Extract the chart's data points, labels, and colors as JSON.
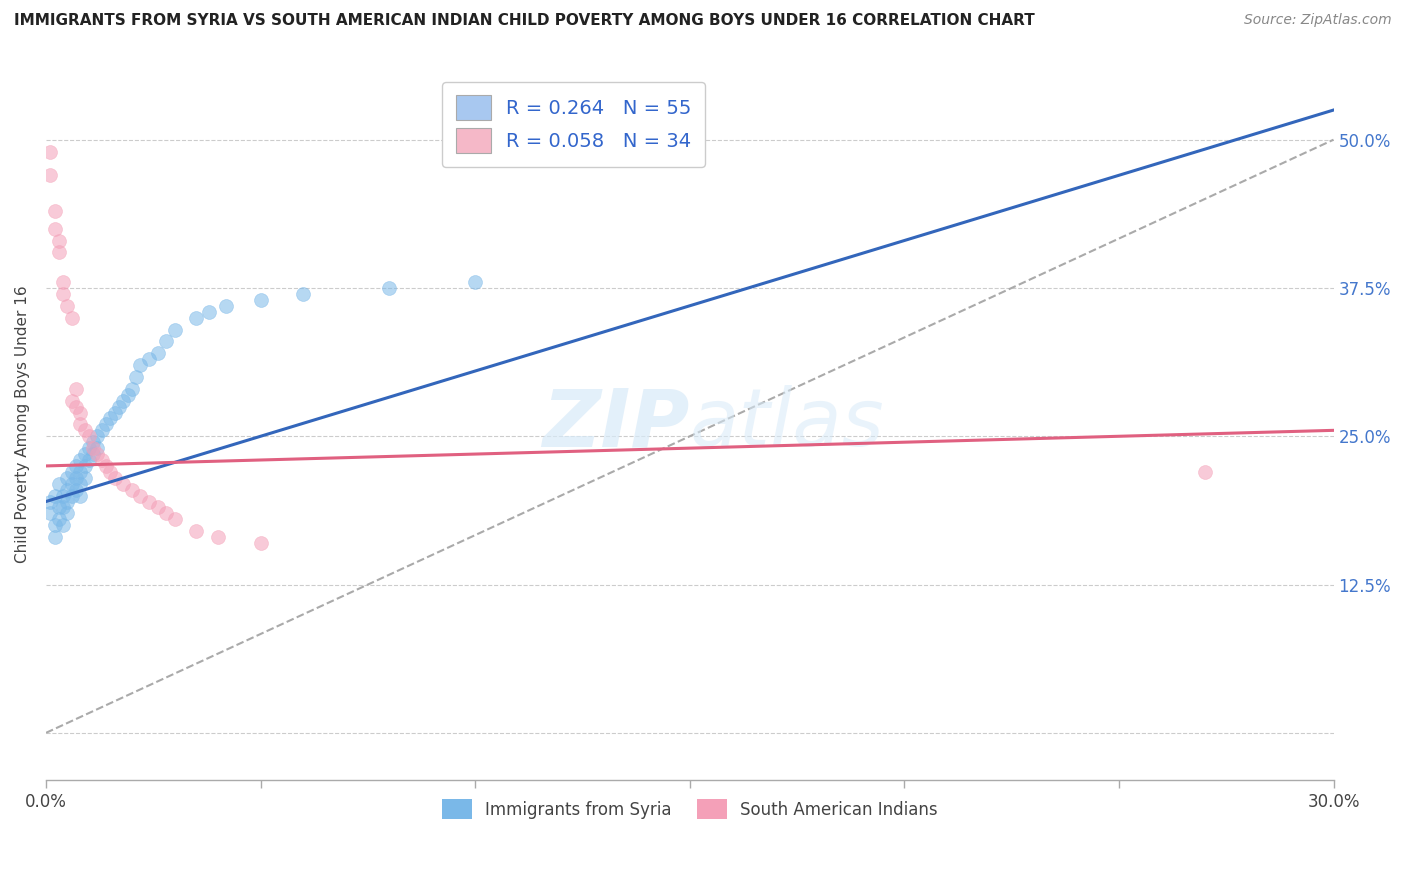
{
  "title": "IMMIGRANTS FROM SYRIA VS SOUTH AMERICAN INDIAN CHILD POVERTY AMONG BOYS UNDER 16 CORRELATION CHART",
  "source": "Source: ZipAtlas.com",
  "ylabel": "Child Poverty Among Boys Under 16",
  "xlim": [
    0.0,
    0.3
  ],
  "ylim": [
    -0.04,
    0.56
  ],
  "xticks": [
    0.0,
    0.05,
    0.1,
    0.15,
    0.2,
    0.25,
    0.3
  ],
  "xticklabels": [
    "0.0%",
    "",
    "",
    "",
    "",
    "",
    "30.0%"
  ],
  "yticks": [
    0.0,
    0.125,
    0.25,
    0.375,
    0.5
  ],
  "yticklabels": [
    "",
    "12.5%",
    "25.0%",
    "37.5%",
    "50.0%"
  ],
  "watermark": "ZIPatlas",
  "legend_R_N_blue": "R = 0.264   N = 55",
  "legend_R_N_pink": "R = 0.058   N = 34",
  "legend_patch_blue": "#a8c8f0",
  "legend_patch_pink": "#f5b8c8",
  "blue_color": "#7ab8e8",
  "pink_color": "#f4a0b8",
  "trend_blue": "#3366bb",
  "trend_pink": "#e06080",
  "trend_dashed_color": "#aaaaaa",
  "syria_x": [
    0.001,
    0.001,
    0.002,
    0.002,
    0.002,
    0.003,
    0.003,
    0.003,
    0.004,
    0.004,
    0.004,
    0.005,
    0.005,
    0.005,
    0.005,
    0.006,
    0.006,
    0.006,
    0.007,
    0.007,
    0.007,
    0.008,
    0.008,
    0.008,
    0.008,
    0.009,
    0.009,
    0.009,
    0.01,
    0.01,
    0.011,
    0.011,
    0.012,
    0.012,
    0.013,
    0.014,
    0.015,
    0.016,
    0.017,
    0.018,
    0.019,
    0.02,
    0.021,
    0.022,
    0.024,
    0.026,
    0.028,
    0.03,
    0.035,
    0.038,
    0.042,
    0.05,
    0.06,
    0.08,
    0.1
  ],
  "syria_y": [
    0.195,
    0.185,
    0.2,
    0.175,
    0.165,
    0.21,
    0.19,
    0.18,
    0.2,
    0.19,
    0.175,
    0.215,
    0.205,
    0.195,
    0.185,
    0.22,
    0.21,
    0.2,
    0.225,
    0.215,
    0.205,
    0.23,
    0.22,
    0.21,
    0.2,
    0.235,
    0.225,
    0.215,
    0.24,
    0.23,
    0.245,
    0.235,
    0.25,
    0.24,
    0.255,
    0.26,
    0.265,
    0.27,
    0.275,
    0.28,
    0.285,
    0.29,
    0.3,
    0.31,
    0.315,
    0.32,
    0.33,
    0.34,
    0.35,
    0.355,
    0.36,
    0.365,
    0.37,
    0.375,
    0.38
  ],
  "india_x": [
    0.001,
    0.001,
    0.002,
    0.002,
    0.003,
    0.003,
    0.004,
    0.004,
    0.005,
    0.006,
    0.006,
    0.007,
    0.007,
    0.008,
    0.008,
    0.009,
    0.01,
    0.011,
    0.012,
    0.013,
    0.014,
    0.015,
    0.016,
    0.018,
    0.02,
    0.022,
    0.024,
    0.026,
    0.028,
    0.03,
    0.035,
    0.04,
    0.05,
    0.27
  ],
  "india_y": [
    0.49,
    0.47,
    0.44,
    0.425,
    0.415,
    0.405,
    0.38,
    0.37,
    0.36,
    0.35,
    0.28,
    0.29,
    0.275,
    0.27,
    0.26,
    0.255,
    0.25,
    0.24,
    0.235,
    0.23,
    0.225,
    0.22,
    0.215,
    0.21,
    0.205,
    0.2,
    0.195,
    0.19,
    0.185,
    0.18,
    0.17,
    0.165,
    0.16,
    0.22
  ]
}
